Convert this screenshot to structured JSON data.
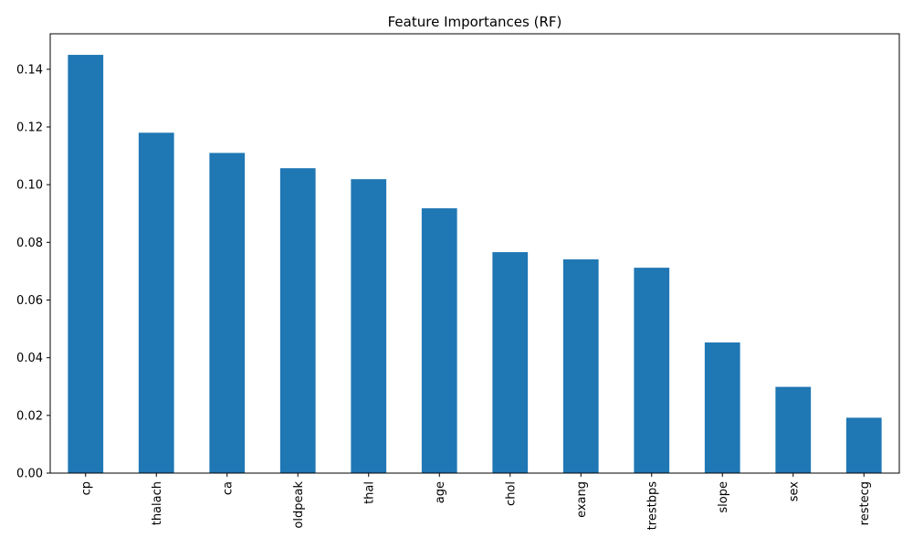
{
  "chart_data": {
    "type": "bar",
    "title": "Feature Importances (RF)",
    "xlabel": "",
    "ylabel": "",
    "categories": [
      "cp",
      "thalach",
      "ca",
      "oldpeak",
      "thal",
      "age",
      "chol",
      "exang",
      "trestbps",
      "slope",
      "sex",
      "restecg"
    ],
    "values": [
      0.145,
      0.118,
      0.111,
      0.1057,
      0.1019,
      0.0918,
      0.0766,
      0.0741,
      0.0712,
      0.0453,
      0.0299,
      0.0192
    ],
    "ylim": [
      0,
      0.1523
    ],
    "yticks": [
      "0.00",
      "0.02",
      "0.04",
      "0.06",
      "0.08",
      "0.10",
      "0.12",
      "0.14"
    ],
    "bar_color": "#1f77b4",
    "grid": false,
    "legend": "none"
  }
}
